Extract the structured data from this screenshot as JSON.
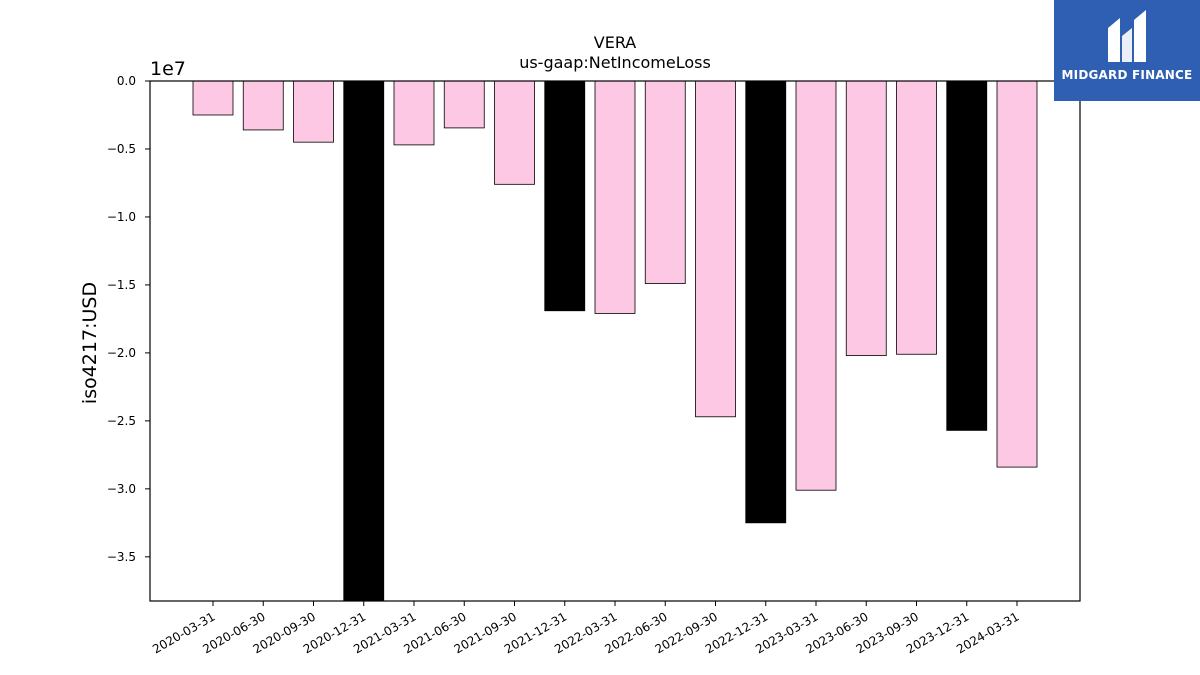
{
  "brand": {
    "name": "MIDGARD FINANCE",
    "bg_color": "#2f5fb3"
  },
  "chart_data": {
    "type": "bar",
    "title": "VERA",
    "subtitle": "us-gaap:NetIncomeLoss",
    "xlabel": "",
    "ylabel": "iso4217:USD",
    "offset_text": "1e7",
    "ylim": [
      -38250000,
      0
    ],
    "yticks": [
      0.0,
      -0.5,
      -1.0,
      -1.5,
      -2.0,
      -2.5,
      -3.0,
      -3.5
    ],
    "categories": [
      "2020-03-31",
      "2020-06-30",
      "2020-09-30",
      "2020-12-31",
      "2021-03-31",
      "2021-06-30",
      "2021-09-30",
      "2021-12-31",
      "2022-03-31",
      "2022-06-30",
      "2022-09-30",
      "2022-12-31",
      "2023-03-31",
      "2023-06-30",
      "2023-09-30",
      "2023-12-31",
      "2024-03-31"
    ],
    "values": [
      -2500000,
      -3600000,
      -4500000,
      -38250000,
      -4700000,
      -3450000,
      -7600000,
      -16900000,
      -17100000,
      -14900000,
      -24700000,
      -32500000,
      -30100000,
      -20200000,
      -20100000,
      -25700000,
      -28400000
    ],
    "bar_colors": [
      "#fcc8e3",
      "#fcc8e3",
      "#fcc8e3",
      "#000000",
      "#fcc8e3",
      "#fcc8e3",
      "#fcc8e3",
      "#000000",
      "#fcc8e3",
      "#fcc8e3",
      "#fcc8e3",
      "#000000",
      "#fcc8e3",
      "#fcc8e3",
      "#fcc8e3",
      "#000000",
      "#fcc8e3"
    ],
    "grid": false,
    "legend": "none"
  }
}
